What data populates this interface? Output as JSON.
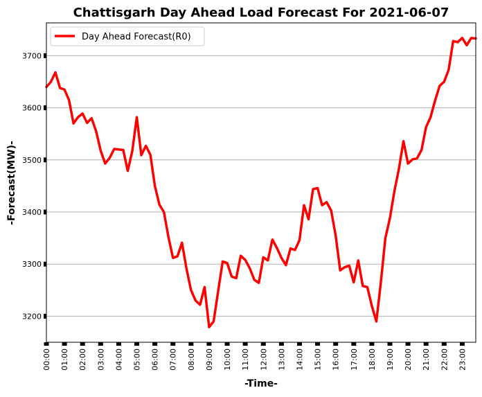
{
  "chart_data": {
    "type": "line",
    "title": "Chattisgarh Day Ahead Load Forecast For 2021-06-07",
    "xlabel": "-Time-",
    "ylabel": "-Forecast(MW)-",
    "ylim": [
      3150,
      3763
    ],
    "y_ticks": [
      3200,
      3300,
      3400,
      3500,
      3600,
      3700
    ],
    "y_tick_labels": [
      "3200",
      "3300",
      "3400",
      "3500",
      "3600",
      "3700"
    ],
    "x_ticks": [
      "00:00",
      "01:00",
      "02:00",
      "03:00",
      "04:00",
      "05:00",
      "06:00",
      "07:00",
      "08:00",
      "09:00",
      "10:00",
      "11:00",
      "12:00",
      "13:00",
      "14:00",
      "15:00",
      "16:00",
      "17:00",
      "18:00",
      "19:00",
      "20:00",
      "21:00",
      "22:00",
      "23:00"
    ],
    "grid": "horizontal",
    "legend_position": "top-left",
    "series": [
      {
        "name": "Day Ahead Forecast(R0)",
        "color": "#ff0000",
        "values": [
          3640,
          3650,
          3668,
          3638,
          3635,
          3615,
          3570,
          3582,
          3589,
          3571,
          3580,
          3555,
          3518,
          3493,
          3504,
          3521,
          3520,
          3519,
          3479,
          3517,
          3582,
          3509,
          3527,
          3510,
          3450,
          3414,
          3400,
          3352,
          3312,
          3315,
          3341,
          3291,
          3250,
          3230,
          3222,
          3256,
          3179,
          3190,
          3248,
          3305,
          3302,
          3276,
          3273,
          3316,
          3308,
          3292,
          3270,
          3264,
          3313,
          3307,
          3347,
          3331,
          3312,
          3298,
          3330,
          3327,
          3346,
          3413,
          3386,
          3444,
          3446,
          3413,
          3419,
          3403,
          3355,
          3288,
          3294,
          3297,
          3265,
          3307,
          3258,
          3256,
          3220,
          3190,
          3265,
          3350,
          3388,
          3440,
          3483,
          3536,
          3493,
          3501,
          3503,
          3519,
          3563,
          3582,
          3614,
          3642,
          3650,
          3673,
          3728,
          3726,
          3734,
          3720,
          3734,
          3733
        ]
      }
    ]
  }
}
